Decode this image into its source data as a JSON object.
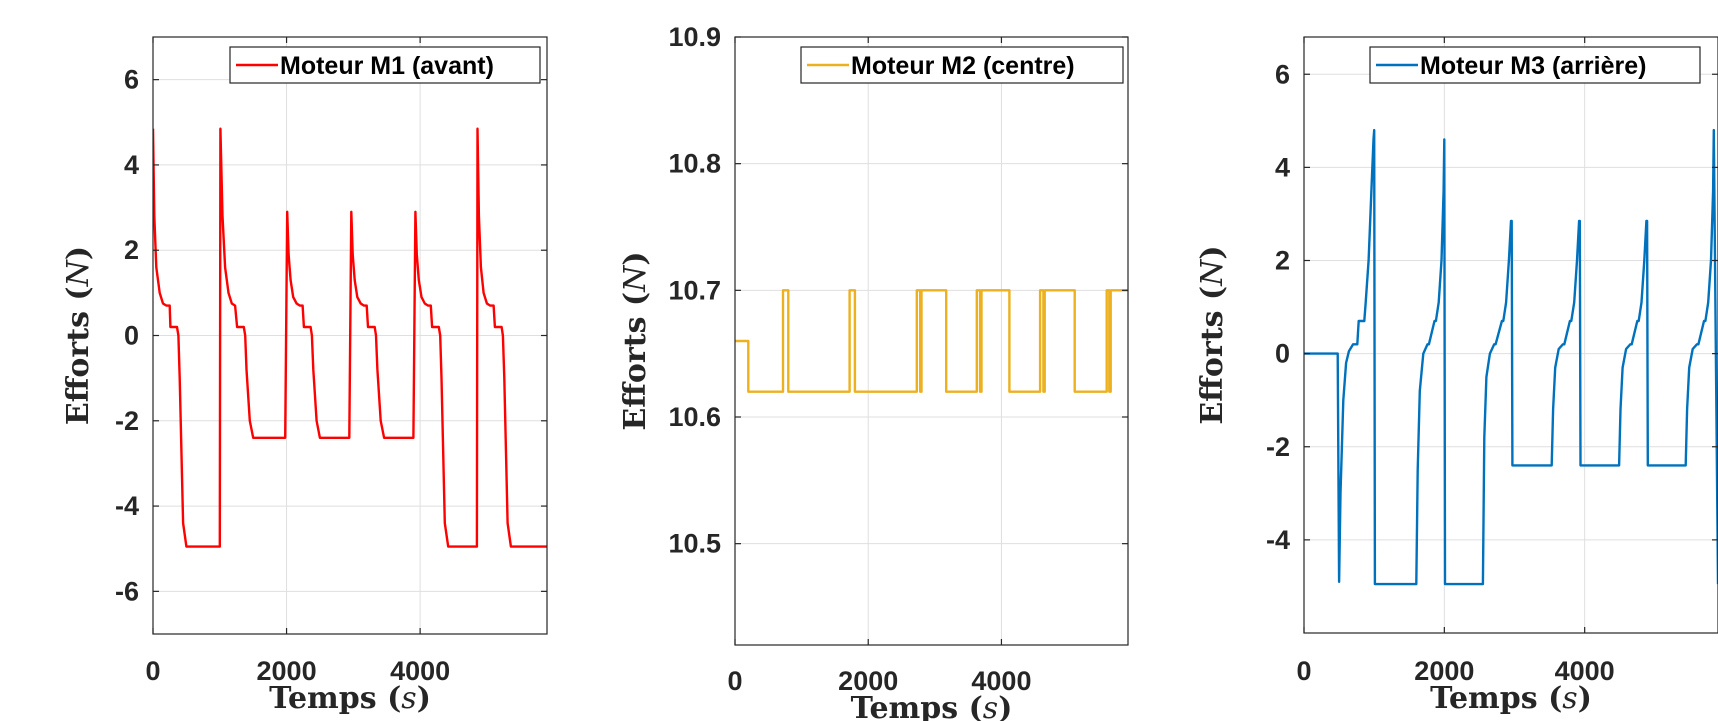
{
  "chart_data": [
    {
      "type": "line",
      "xlabel_word": "Temps",
      "xlabel_unit": "s",
      "ylabel_word": "Efforts",
      "ylabel_unit": "N",
      "xlim": [
        0,
        5900
      ],
      "ylim": [
        -7,
        7
      ],
      "xticks": [
        0,
        2000,
        4000
      ],
      "xtick_labels": [
        "0",
        "2000",
        "4000"
      ],
      "yticks": [
        6,
        4,
        2,
        0,
        -2,
        -4,
        -6
      ],
      "ytick_labels": [
        "6",
        "4",
        "2",
        "0",
        "-2",
        "-4",
        "-6"
      ],
      "grid": true,
      "legend_position": "top-right",
      "series": [
        {
          "name": "Moteur M1 (avant)",
          "color": "#ff0000",
          "x": [
            0,
            20,
            50,
            100,
            150,
            200,
            250,
            260,
            360,
            380,
            400,
            450,
            500,
            1000,
            1010,
            1040,
            1080,
            1130,
            1180,
            1230,
            1260,
            1360,
            1380,
            1400,
            1450,
            1500,
            1980,
            2010,
            2030,
            2060,
            2100,
            2150,
            2200,
            2240,
            2260,
            2360,
            2380,
            2400,
            2450,
            2500,
            2940,
            2970,
            2990,
            3020,
            3060,
            3110,
            3160,
            3200,
            3220,
            3320,
            3340,
            3360,
            3410,
            3460,
            3900,
            3930,
            3950,
            3980,
            4020,
            4070,
            4120,
            4160,
            4180,
            4280,
            4300,
            4320,
            4370,
            4420,
            4850,
            4860,
            4880,
            4910,
            4950,
            5000,
            5050,
            5100,
            5120,
            5220,
            5240,
            5260,
            5310,
            5360,
            5900
          ],
          "y": [
            4.85,
            2.8,
            1.6,
            1.0,
            0.75,
            0.7,
            0.7,
            0.2,
            0.2,
            0.0,
            -1.0,
            -4.4,
            -4.95,
            -4.95,
            4.85,
            2.8,
            1.6,
            1.0,
            0.75,
            0.7,
            0.2,
            0.2,
            0.0,
            -0.8,
            -2.0,
            -2.4,
            -2.4,
            2.9,
            1.9,
            1.3,
            0.9,
            0.75,
            0.7,
            0.7,
            0.2,
            0.2,
            0.0,
            -0.8,
            -2.0,
            -2.4,
            -2.4,
            2.9,
            1.9,
            1.3,
            0.9,
            0.75,
            0.7,
            0.7,
            0.2,
            0.2,
            0.0,
            -0.8,
            -2.0,
            -2.4,
            -2.4,
            2.9,
            1.9,
            1.3,
            0.9,
            0.75,
            0.7,
            0.7,
            0.2,
            0.2,
            0.0,
            -1.0,
            -4.4,
            -4.95,
            -4.95,
            4.85,
            2.8,
            1.6,
            1.0,
            0.75,
            0.7,
            0.7,
            0.2,
            0.2,
            0.0,
            -1.0,
            -4.4,
            -4.95,
            -4.95
          ]
        }
      ]
    },
    {
      "type": "line",
      "xlabel_word": "Temps",
      "xlabel_unit": "s",
      "ylabel_word": "Efforts",
      "ylabel_unit": "N",
      "xlim": [
        0,
        5900
      ],
      "ylim": [
        10.42,
        10.9
      ],
      "xticks": [
        0,
        2000,
        4000
      ],
      "xtick_labels": [
        "0",
        "2000",
        "4000"
      ],
      "yticks": [
        10.9,
        10.8,
        10.7,
        10.6,
        10.5
      ],
      "ytick_labels": [
        "10.9",
        "10.8",
        "10.7",
        "10.6",
        "10.5"
      ],
      "grid": true,
      "legend_position": "top-right",
      "series": [
        {
          "name": "Moteur M2 (centre)",
          "color": "#edb120",
          "x": [
            0,
            200,
            200,
            720,
            720,
            800,
            800,
            1720,
            1720,
            1800,
            1800,
            2730,
            2730,
            2780,
            2780,
            2800,
            2800,
            3170,
            3170,
            3630,
            3630,
            3680,
            3680,
            3700,
            3700,
            4120,
            4120,
            4580,
            4580,
            4630,
            4630,
            4650,
            4650,
            5100,
            5100,
            5580,
            5580,
            5620,
            5620,
            5640,
            5640,
            5900
          ],
          "y": [
            10.66,
            10.66,
            10.62,
            10.62,
            10.7,
            10.7,
            10.62,
            10.62,
            10.7,
            10.7,
            10.62,
            10.62,
            10.7,
            10.7,
            10.62,
            10.62,
            10.7,
            10.7,
            10.62,
            10.62,
            10.7,
            10.7,
            10.62,
            10.62,
            10.7,
            10.7,
            10.62,
            10.62,
            10.7,
            10.7,
            10.62,
            10.62,
            10.7,
            10.7,
            10.62,
            10.62,
            10.7,
            10.7,
            10.62,
            10.62,
            10.7,
            10.7
          ]
        }
      ]
    },
    {
      "type": "line",
      "xlabel_word": "Temps",
      "xlabel_unit": "s",
      "ylabel_word": "Efforts",
      "ylabel_unit": "N",
      "xlim": [
        0,
        5900
      ],
      "ylim": [
        -6,
        6.8
      ],
      "xticks": [
        0,
        2000,
        4000
      ],
      "xtick_labels": [
        "0",
        "2000",
        "4000"
      ],
      "yticks": [
        6,
        4,
        2,
        0,
        -2,
        -4
      ],
      "ytick_labels": [
        "6",
        "4",
        "2",
        "0",
        "-2",
        "-4"
      ],
      "grid": true,
      "legend_position": "top-right",
      "series": [
        {
          "name": "Moteur M3 (arrière)",
          "color": "#0072bd",
          "x": [
            0,
            480,
            500,
            520,
            560,
            600,
            640,
            700,
            760,
            780,
            860,
            880,
            920,
            960,
            990,
            1000,
            1010,
            1600,
            1620,
            1650,
            1700,
            1760,
            1780,
            1860,
            1880,
            1920,
            1960,
            1990,
            2000,
            2010,
            2550,
            2570,
            2600,
            2650,
            2710,
            2730,
            2820,
            2840,
            2880,
            2920,
            2950,
            2960,
            2970,
            3530,
            3550,
            3580,
            3630,
            3690,
            3710,
            3790,
            3810,
            3850,
            3890,
            3920,
            3930,
            3940,
            4490,
            4510,
            4540,
            4590,
            4650,
            4670,
            4750,
            4770,
            4810,
            4850,
            4880,
            4890,
            4900,
            5440,
            5460,
            5490,
            5540,
            5600,
            5620,
            5700,
            5720,
            5760,
            5800,
            5830,
            5840,
            5900
          ],
          "y": [
            0.0,
            0.0,
            -4.9,
            -3.0,
            -1.0,
            -0.2,
            0.05,
            0.2,
            0.2,
            0.7,
            0.7,
            1.1,
            2.0,
            3.5,
            4.6,
            4.8,
            -4.95,
            -4.95,
            -2.5,
            -0.8,
            0.0,
            0.2,
            0.2,
            0.7,
            0.7,
            1.1,
            2.0,
            3.5,
            4.6,
            -4.95,
            -4.95,
            -1.8,
            -0.5,
            0.0,
            0.2,
            0.2,
            0.7,
            0.7,
            1.1,
            2.0,
            2.85,
            2.85,
            -2.4,
            -2.4,
            -1.2,
            -0.3,
            0.1,
            0.2,
            0.2,
            0.7,
            0.7,
            1.1,
            2.0,
            2.85,
            2.85,
            -2.4,
            -2.4,
            -1.2,
            -0.3,
            0.1,
            0.2,
            0.2,
            0.7,
            0.7,
            1.1,
            2.0,
            2.85,
            2.85,
            -2.4,
            -2.4,
            -1.2,
            -0.3,
            0.1,
            0.2,
            0.2,
            0.7,
            0.7,
            1.1,
            2.0,
            3.5,
            4.8,
            -4.95
          ]
        }
      ]
    }
  ]
}
